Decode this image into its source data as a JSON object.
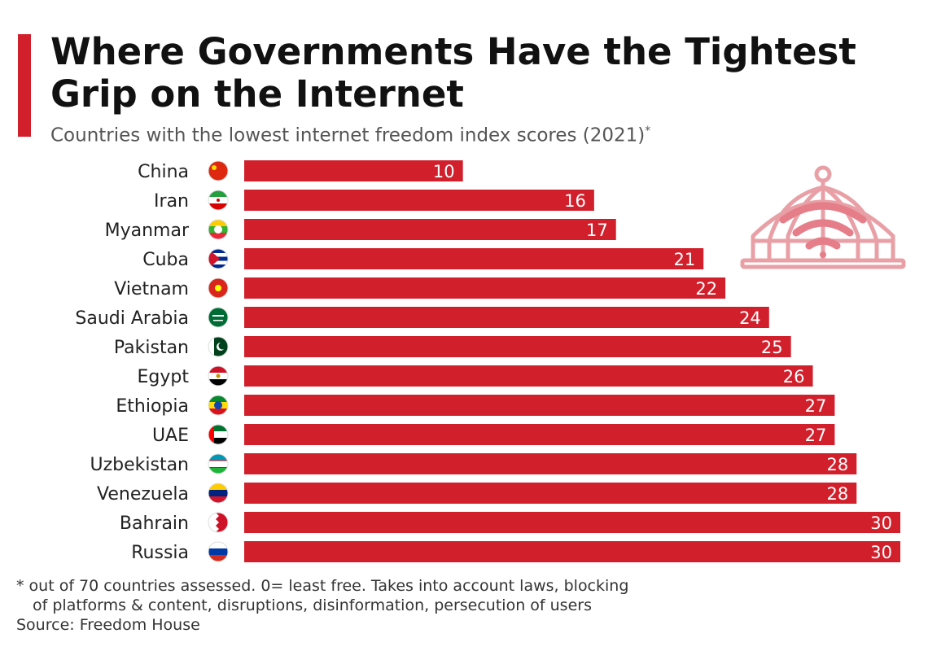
{
  "title": "Where Governments Have the Tightest Grip on the Internet",
  "subtitle": "Countries with the lowest internet freedom index scores (2021)",
  "subtitle_marker": "*",
  "colors": {
    "accent": "#d1202c",
    "bar": "#d1202c",
    "text": "#111111",
    "subtext": "#555555"
  },
  "chart_data": {
    "type": "bar",
    "orientation": "horizontal",
    "title": "Where Governments Have the Tightest Grip on the Internet",
    "subtitle": "Countries with the lowest internet freedom index scores (2021)*",
    "categories": [
      "China",
      "Iran",
      "Myanmar",
      "Cuba",
      "Vietnam",
      "Saudi Arabia",
      "Pakistan",
      "Egypt",
      "Ethiopia",
      "UAE",
      "Uzbekistan",
      "Venezuela",
      "Bahrain",
      "Russia"
    ],
    "values": [
      10,
      16,
      17,
      21,
      22,
      24,
      25,
      26,
      27,
      27,
      28,
      28,
      30,
      30
    ],
    "xlim": [
      0,
      30
    ],
    "xlabel": "",
    "ylabel": "",
    "grid": false,
    "data_labels": true
  },
  "flags": [
    "china-flag-icon",
    "iran-flag-icon",
    "myanmar-flag-icon",
    "cuba-flag-icon",
    "vietnam-flag-icon",
    "saudi-arabia-flag-icon",
    "pakistan-flag-icon",
    "egypt-flag-icon",
    "ethiopia-flag-icon",
    "uae-flag-icon",
    "uzbekistan-flag-icon",
    "venezuela-flag-icon",
    "bahrain-flag-icon",
    "russia-flag-icon"
  ],
  "illustration": "birdcage-wifi-icon",
  "footnote": {
    "line1": "* out of 70 countries assessed. 0= least free. Takes into account laws, blocking",
    "line2": "of platforms & content, disruptions, disinformation, persecution of users"
  },
  "source": "Source: Freedom House"
}
